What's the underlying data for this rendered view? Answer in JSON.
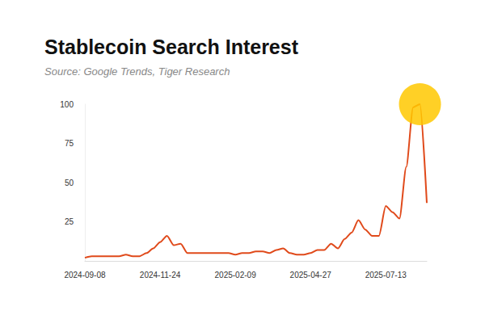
{
  "chart_data": {
    "type": "line",
    "title": "Stablecoin Search Interest",
    "subtitle": "Source: Google Trends, Tiger Research",
    "categories": [
      "2024-09-08",
      null,
      null,
      null,
      null,
      null,
      null,
      null,
      null,
      null,
      null,
      "2024-11-24",
      null,
      null,
      null,
      null,
      null,
      null,
      null,
      null,
      null,
      null,
      "2025-02-09",
      null,
      null,
      null,
      null,
      null,
      null,
      null,
      null,
      null,
      null,
      "2025-04-27",
      null,
      null,
      null,
      null,
      null,
      null,
      null,
      null,
      null,
      null,
      "2025-07-13",
      null,
      null,
      null,
      null,
      null,
      null
    ],
    "values": [
      2,
      3,
      3,
      3,
      3,
      3,
      4,
      3,
      3,
      5,
      8,
      12,
      16,
      10,
      11,
      5,
      5,
      5,
      5,
      5,
      5,
      5,
      4,
      5,
      5,
      6,
      6,
      5,
      7,
      8,
      5,
      4,
      4,
      5,
      7,
      7,
      11,
      8,
      14,
      18,
      26,
      20,
      16,
      16,
      35,
      31,
      27,
      60,
      98,
      100,
      37
    ],
    "color": "#e04a1b",
    "ylim": [
      0,
      100
    ],
    "yticks": [
      25,
      50,
      75,
      100
    ],
    "grid": false
  }
}
